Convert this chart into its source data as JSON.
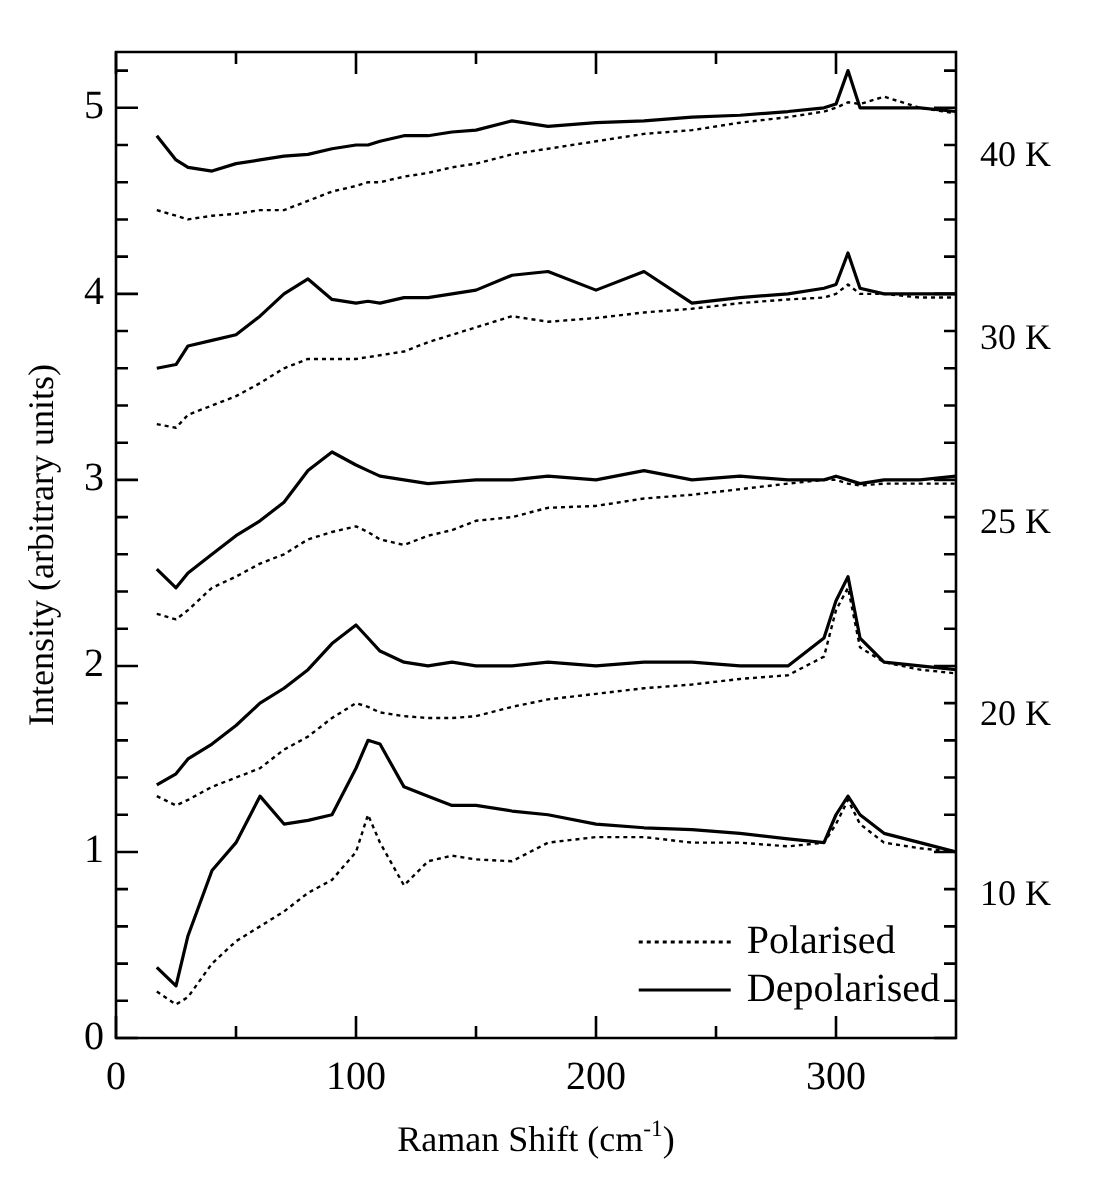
{
  "chart_data": {
    "type": "line",
    "xlabel": "Raman Shift (cm$^{-1}$)",
    "ylabel": "Intensity (arbitrary units)",
    "x": [
      17,
      25,
      30,
      40,
      50,
      60,
      70,
      80,
      90,
      100,
      105,
      110,
      120,
      130,
      140,
      150,
      165,
      180,
      200,
      220,
      240,
      260,
      280,
      295,
      300,
      305,
      310,
      320,
      335,
      350
    ],
    "series": [
      {
        "name": "Polarised",
        "color": "#000000",
        "line_style": "dotted",
        "values": [
          0.25,
          0.18,
          0.22,
          0.4,
          0.52,
          0.6,
          0.68,
          0.78,
          0.85,
          1.0,
          1.2,
          1.05,
          0.82,
          0.95,
          0.98,
          0.96,
          0.95,
          1.05,
          1.08,
          1.08,
          1.05,
          1.05,
          1.03,
          1.05,
          1.15,
          1.28,
          1.15,
          1.05,
          1.02,
          1.0
        ]
      },
      {
        "name": "Depolarised",
        "color": "#000000",
        "line_style": "solid",
        "values": [
          0.38,
          0.28,
          0.55,
          0.9,
          1.05,
          1.3,
          1.15,
          1.17,
          1.2,
          1.45,
          1.6,
          1.58,
          1.35,
          1.3,
          1.25,
          1.25,
          1.22,
          1.2,
          1.15,
          1.13,
          1.12,
          1.1,
          1.07,
          1.05,
          1.2,
          1.3,
          1.2,
          1.1,
          1.05,
          1.0
        ]
      },
      {
        "color": "#000000",
        "line_style": "dotted",
        "values": [
          1.3,
          1.25,
          1.28,
          1.35,
          1.4,
          1.45,
          1.55,
          1.62,
          1.72,
          1.8,
          1.78,
          1.75,
          1.73,
          1.72,
          1.72,
          1.73,
          1.78,
          1.82,
          1.85,
          1.88,
          1.9,
          1.93,
          1.95,
          2.05,
          2.3,
          2.42,
          2.1,
          2.02,
          1.98,
          1.96
        ]
      },
      {
        "color": "#000000",
        "line_style": "solid",
        "values": [
          1.36,
          1.42,
          1.5,
          1.58,
          1.68,
          1.8,
          1.88,
          1.98,
          2.12,
          2.22,
          2.15,
          2.08,
          2.02,
          2.0,
          2.02,
          2.0,
          2.0,
          2.02,
          2.0,
          2.02,
          2.02,
          2.0,
          2.0,
          2.15,
          2.35,
          2.48,
          2.15,
          2.02,
          2.0,
          1.98
        ]
      },
      {
        "color": "#000000",
        "line_style": "dotted",
        "values": [
          2.28,
          2.25,
          2.3,
          2.42,
          2.48,
          2.55,
          2.6,
          2.68,
          2.72,
          2.75,
          2.72,
          2.68,
          2.65,
          2.7,
          2.73,
          2.78,
          2.8,
          2.85,
          2.86,
          2.9,
          2.92,
          2.95,
          2.98,
          3.0,
          3.0,
          2.98,
          2.97,
          2.98,
          2.98,
          2.98
        ]
      },
      {
        "color": "#000000",
        "line_style": "solid",
        "values": [
          2.52,
          2.42,
          2.5,
          2.6,
          2.7,
          2.78,
          2.88,
          3.05,
          3.15,
          3.08,
          3.05,
          3.02,
          3.0,
          2.98,
          2.99,
          3.0,
          3.0,
          3.02,
          3.0,
          3.05,
          3.0,
          3.02,
          3.0,
          3.0,
          3.02,
          3.0,
          2.98,
          3.0,
          3.0,
          3.02
        ]
      },
      {
        "color": "#000000",
        "line_style": "dotted",
        "values": [
          3.3,
          3.28,
          3.35,
          3.4,
          3.45,
          3.52,
          3.6,
          3.65,
          3.65,
          3.65,
          3.66,
          3.67,
          3.69,
          3.74,
          3.78,
          3.82,
          3.88,
          3.85,
          3.87,
          3.9,
          3.92,
          3.95,
          3.97,
          3.98,
          4.0,
          4.05,
          4.0,
          4.0,
          3.98,
          3.98
        ]
      },
      {
        "color": "#000000",
        "line_style": "solid",
        "values": [
          3.6,
          3.62,
          3.72,
          3.75,
          3.78,
          3.88,
          4.0,
          4.08,
          3.97,
          3.95,
          3.96,
          3.95,
          3.98,
          3.98,
          4.0,
          4.02,
          4.1,
          4.12,
          4.02,
          4.12,
          3.95,
          3.98,
          4.0,
          4.03,
          4.05,
          4.22,
          4.03,
          4.0,
          4.0,
          4.0
        ]
      },
      {
        "color": "#000000",
        "line_style": "dotted",
        "values": [
          4.45,
          4.42,
          4.4,
          4.42,
          4.43,
          4.45,
          4.45,
          4.5,
          4.55,
          4.58,
          4.6,
          4.6,
          4.63,
          4.65,
          4.68,
          4.7,
          4.75,
          4.78,
          4.82,
          4.86,
          4.88,
          4.92,
          4.95,
          4.98,
          5.0,
          5.03,
          5.02,
          5.06,
          5.0,
          4.97
        ]
      },
      {
        "color": "#000000",
        "line_style": "solid",
        "values": [
          4.85,
          4.72,
          4.68,
          4.66,
          4.7,
          4.72,
          4.74,
          4.75,
          4.78,
          4.8,
          4.8,
          4.82,
          4.85,
          4.85,
          4.87,
          4.88,
          4.93,
          4.9,
          4.92,
          4.93,
          4.95,
          4.96,
          4.98,
          5.0,
          5.02,
          5.2,
          5.0,
          5.0,
          5.0,
          4.98
        ]
      }
    ],
    "xlim": [
      0,
      350
    ],
    "xticks": [
      0,
      {
        "value": 50,
        "label": null
      },
      100,
      {
        "value": 150,
        "label": null
      },
      200,
      {
        "value": 250,
        "label": null
      },
      300
    ],
    "ylim": [
      0,
      5.3
    ],
    "yticks": [
      0,
      {
        "value": 0.2,
        "label": null
      },
      {
        "value": 0.4,
        "label": null
      },
      {
        "value": 0.6,
        "label": null
      },
      {
        "value": 0.8,
        "label": null
      },
      1,
      {
        "value": 1.2,
        "label": null
      },
      {
        "value": 1.4,
        "label": null
      },
      {
        "value": 1.6,
        "label": null
      },
      {
        "value": 1.8,
        "label": null
      },
      2,
      {
        "value": 2.2,
        "label": null
      },
      {
        "value": 2.4,
        "label": null
      },
      {
        "value": 2.6,
        "label": null
      },
      {
        "value": 2.8,
        "label": null
      },
      3,
      {
        "value": 3.2,
        "label": null
      },
      {
        "value": 3.4,
        "label": null
      },
      {
        "value": 3.6,
        "label": null
      },
      {
        "value": 3.8,
        "label": null
      },
      4,
      {
        "value": 4.2,
        "label": null
      },
      {
        "value": 4.4,
        "label": null
      },
      {
        "value": 4.6,
        "label": null
      },
      {
        "value": 4.8,
        "label": null
      },
      5,
      {
        "value": 5.2,
        "label": null
      }
    ],
    "annotations": [
      "40 K",
      "30 K",
      "25 K",
      "20 K",
      "10 K"
    ],
    "grid": false,
    "legend": "bottom right",
    "marker": "none"
  }
}
